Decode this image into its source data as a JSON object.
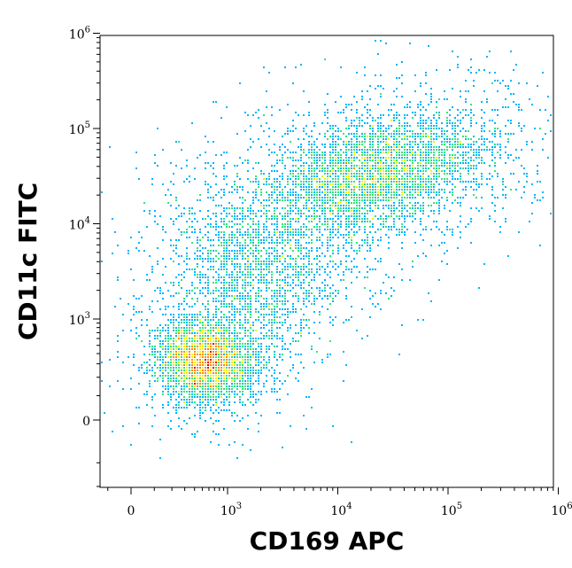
{
  "chart_data": {
    "type": "scatter",
    "style": "flow-cytometry-density-dot-plot",
    "xlabel": "CD169 APC",
    "ylabel": "CD11c FITC",
    "x_scale": "biexponential",
    "y_scale": "biexponential",
    "xlim": [
      -200,
      1000000
    ],
    "ylim": [
      -1000,
      1000000
    ],
    "x_ticks": [
      {
        "value": 0,
        "base": "0",
        "exp": ""
      },
      {
        "value": 1000,
        "base": "10",
        "exp": "3"
      },
      {
        "value": 10000,
        "base": "10",
        "exp": "4"
      },
      {
        "value": 100000,
        "base": "10",
        "exp": "5"
      },
      {
        "value": 1000000,
        "base": "10",
        "exp": "6"
      }
    ],
    "y_ticks": [
      {
        "value": 0,
        "base": "0",
        "exp": ""
      },
      {
        "value": 1000,
        "base": "10",
        "exp": "3"
      },
      {
        "value": 10000,
        "base": "10",
        "exp": "4"
      },
      {
        "value": 100000,
        "base": "10",
        "exp": "5"
      },
      {
        "value": 1000000,
        "base": "10",
        "exp": "6"
      }
    ],
    "populations": [
      {
        "x_center": 550,
        "y_center": 320,
        "relative_density": 0.75
      },
      {
        "x_center": 1500,
        "y_center": 3500,
        "relative_density": 0.25
      },
      {
        "x_center": 23000,
        "y_center": 33000,
        "relative_density": 1.0
      }
    ],
    "outliers": [
      {
        "x": 22000,
        "y": 800000
      },
      {
        "x": 20000,
        "y": 1050
      },
      {
        "x": 60000,
        "y": 1000
      }
    ],
    "color_scale": [
      "#1c1ee6",
      "#00b4ff",
      "#35e37a",
      "#f0f000",
      "#ff8800",
      "#e00000"
    ],
    "grid": false
  }
}
